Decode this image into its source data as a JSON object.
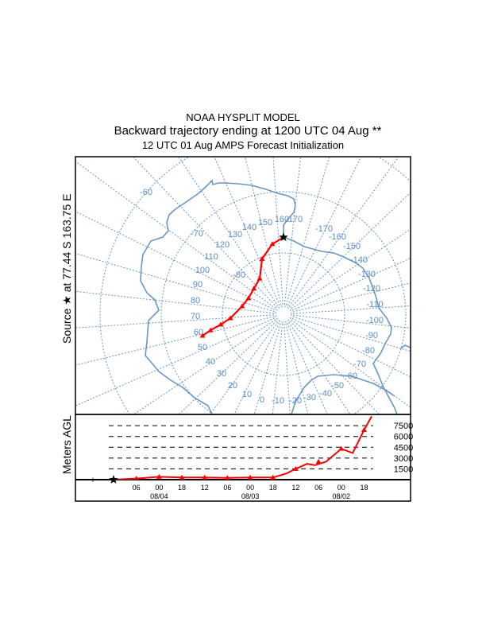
{
  "header": {
    "line1": "NOAA HYSPLIT MODEL",
    "line2": "Backward trajectory ending at 1200 UTC 04 Aug **",
    "line3": "12 UTC 01 Aug    AMPS  Forecast Initialization"
  },
  "source_label": "Source ★ at  77.44 S  163.75 E",
  "map": {
    "projection": "south polar stereographic",
    "source": {
      "lat": -77.44,
      "lon": 163.75
    },
    "latitude_rings": [
      -80,
      -70,
      -60
    ],
    "latitude_labels": [
      "-80",
      "-70",
      "-60"
    ],
    "meridian_step_deg": 10,
    "longitude_labels": [
      "160",
      "170",
      "150",
      "140",
      "130",
      "120",
      "110",
      "100",
      "90",
      "80",
      "70",
      "60",
      "50",
      "40",
      "30",
      "20",
      "10",
      "0",
      "-10",
      "-20",
      "-30",
      "-40",
      "-50",
      "-60",
      "-70",
      "-80",
      "-90",
      "-100",
      "-110",
      "-120",
      "-130",
      "-140",
      "-150",
      "-160",
      "-170"
    ],
    "colors": {
      "grid": "#6a96c4",
      "coastline": "#6a96c4",
      "trajectory": "#ff0000",
      "source_marker": "#000000"
    },
    "trajectory": [
      {
        "lat": -77.44,
        "lon": 163.75
      },
      {
        "lat": -78.4,
        "lon": 154.7
      },
      {
        "lat": -80.3,
        "lon": 142.6
      },
      {
        "lat": -83.0,
        "lon": 130.0
      },
      {
        "lat": -83.6,
        "lon": 114.6
      },
      {
        "lat": -83.7,
        "lon": 98.2
      },
      {
        "lat": -83.1,
        "lon": 84.6
      },
      {
        "lat": -81.3,
        "lon": 69.5
      },
      {
        "lat": -79.6,
        "lon": 64.4
      },
      {
        "lat": -77.8,
        "lon": 61.4
      },
      {
        "lat": -76.3,
        "lon": 58.9
      }
    ]
  },
  "height_panel": {
    "ylabel": "Meters AGL",
    "levels": [
      "7500",
      "6000",
      "4500",
      "3000",
      "1500"
    ],
    "level_values": [
      7500,
      6000,
      4500,
      3000,
      1500
    ],
    "hour_ticks": [
      "06",
      "00",
      "18",
      "12",
      "06",
      "00",
      "18",
      "12",
      "06",
      "00",
      "18"
    ],
    "date_labels": [
      "08/04",
      "08/03",
      "08/02"
    ],
    "profile": {
      "hours_before_end": [
        0,
        6,
        12,
        18,
        24,
        30,
        36,
        42,
        45.5,
        48,
        51,
        53,
        56,
        60,
        63,
        66,
        68
      ],
      "height_m": [
        0,
        150,
        400,
        300,
        300,
        250,
        300,
        300,
        850,
        1500,
        2200,
        2000,
        2500,
        4300,
        3700,
        6900,
        8800
      ]
    }
  }
}
